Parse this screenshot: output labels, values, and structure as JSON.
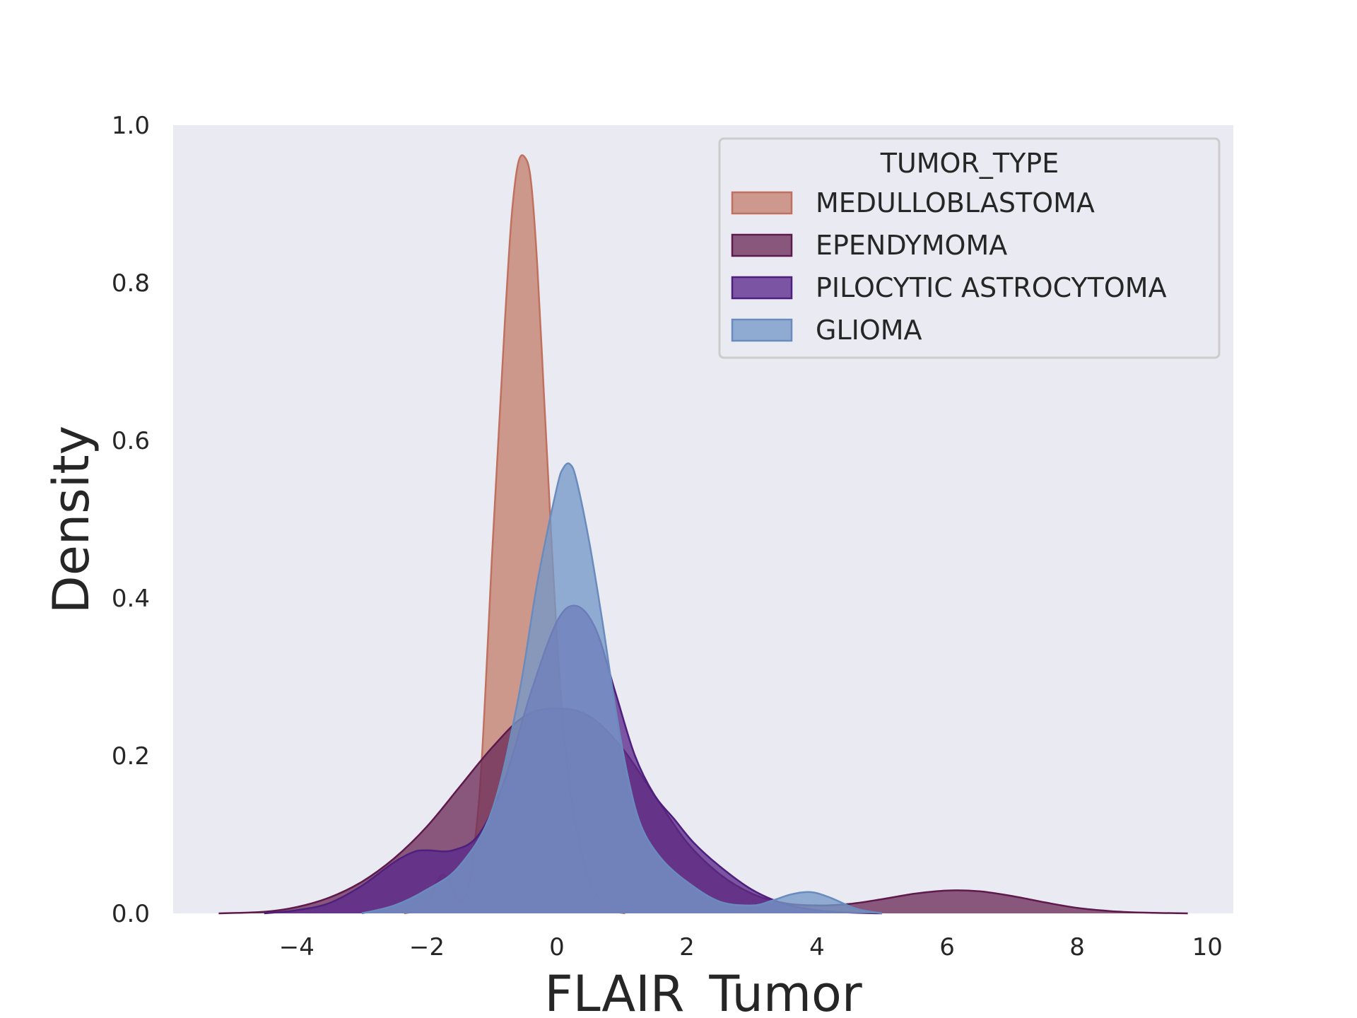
{
  "chart_data": {
    "type": "area",
    "xlabel": "FLAIR_Tumor",
    "ylabel": "Density",
    "xlim": [
      -5.9,
      10.4
    ],
    "ylim": [
      0,
      1.0
    ],
    "xticks": [
      -4,
      -2,
      0,
      2,
      4,
      6,
      8,
      10
    ],
    "yticks": [
      0.0,
      0.2,
      0.4,
      0.6,
      0.8,
      1.0
    ],
    "xtick_labels": [
      "−4",
      "−2",
      "0",
      "2",
      "4",
      "6",
      "8",
      "10"
    ],
    "ytick_labels": [
      "0.0",
      "0.2",
      "0.4",
      "0.6",
      "0.8",
      "1.0"
    ],
    "grid": false,
    "legend": {
      "title": "TUMOR_TYPE",
      "position": "top-right"
    },
    "series": [
      {
        "name": "MEDULLOBLASTOMA",
        "fill": "#c4806f",
        "stroke": "#c0705e",
        "x": [
          -2.35,
          -2.1,
          -1.95,
          -1.85,
          -1.75,
          -1.65,
          -1.55,
          -1.45,
          -1.35,
          -1.2,
          -1.1,
          -1.0,
          -0.9,
          -0.8,
          -0.7,
          -0.6,
          -0.5,
          -0.4,
          -0.3,
          -0.2,
          -0.1,
          0.0,
          0.1,
          0.2,
          0.3,
          0.4,
          0.5,
          0.6,
          0.7,
          0.8,
          0.9,
          1.05
        ],
        "y": [
          0.0,
          0.005,
          0.02,
          0.04,
          0.049,
          0.04,
          0.02,
          0.017,
          0.04,
          0.14,
          0.28,
          0.45,
          0.6,
          0.75,
          0.88,
          0.95,
          0.96,
          0.93,
          0.82,
          0.66,
          0.5,
          0.35,
          0.24,
          0.16,
          0.11,
          0.07,
          0.04,
          0.025,
          0.012,
          0.006,
          0.002,
          0.0
        ]
      },
      {
        "name": "EPENDYMOMA",
        "fill": "#6d2d5a",
        "stroke": "#5e1a4c",
        "x": [
          -5.2,
          -4.5,
          -4.0,
          -3.5,
          -3.0,
          -2.5,
          -2.0,
          -1.5,
          -1.0,
          -0.5,
          0.0,
          0.5,
          1.0,
          1.5,
          2.0,
          2.5,
          3.0,
          3.5,
          4.0,
          4.5,
          5.0,
          5.5,
          6.0,
          6.5,
          7.0,
          7.5,
          8.0,
          8.5,
          9.0,
          9.7
        ],
        "y": [
          0.0,
          0.002,
          0.008,
          0.02,
          0.04,
          0.07,
          0.11,
          0.16,
          0.21,
          0.25,
          0.26,
          0.25,
          0.21,
          0.15,
          0.09,
          0.05,
          0.025,
          0.013,
          0.01,
          0.012,
          0.018,
          0.025,
          0.029,
          0.028,
          0.022,
          0.014,
          0.007,
          0.003,
          0.001,
          0.0
        ]
      },
      {
        "name": "PILOCYTIC ASTROCYTOMA",
        "fill": "#5b2a8c",
        "stroke": "#4e1f7e",
        "x": [
          -4.5,
          -4.0,
          -3.5,
          -3.0,
          -2.5,
          -2.2,
          -2.0,
          -1.6,
          -1.2,
          -0.8,
          -0.4,
          0.0,
          0.3,
          0.6,
          0.9,
          1.2,
          1.5,
          1.8,
          2.1,
          2.5,
          3.0,
          3.5,
          4.0,
          4.5,
          5.0
        ],
        "y": [
          0.0,
          0.004,
          0.013,
          0.035,
          0.065,
          0.078,
          0.08,
          0.08,
          0.1,
          0.17,
          0.28,
          0.37,
          0.39,
          0.36,
          0.28,
          0.2,
          0.15,
          0.12,
          0.09,
          0.06,
          0.03,
          0.012,
          0.004,
          0.001,
          0.0
        ]
      },
      {
        "name": "GLIOMA",
        "fill": "#7498c8",
        "stroke": "#6a8bbd",
        "x": [
          -3.0,
          -2.5,
          -2.0,
          -1.5,
          -1.0,
          -0.6,
          -0.3,
          0.0,
          0.1,
          0.2,
          0.3,
          0.5,
          0.7,
          0.9,
          1.1,
          1.3,
          1.6,
          2.0,
          2.5,
          3.0,
          3.3,
          3.6,
          3.9,
          4.2,
          4.6,
          5.0
        ],
        "y": [
          0.0,
          0.01,
          0.03,
          0.06,
          0.13,
          0.27,
          0.42,
          0.54,
          0.565,
          0.57,
          0.55,
          0.47,
          0.37,
          0.26,
          0.17,
          0.11,
          0.07,
          0.04,
          0.015,
          0.01,
          0.016,
          0.024,
          0.027,
          0.02,
          0.006,
          0.0
        ]
      }
    ]
  }
}
